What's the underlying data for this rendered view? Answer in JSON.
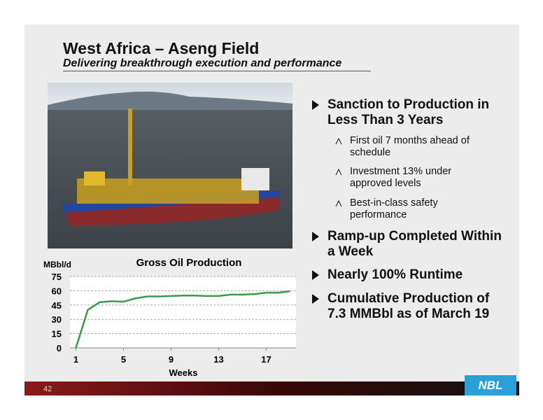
{
  "header": {
    "title": "West Africa – Aseng Field",
    "subtitle": "Delivering breakthrough execution and performance"
  },
  "bullets": [
    {
      "text": "Sanction to Production in Less Than 3 Years",
      "sub": [
        "First oil 7 months ahead of schedule",
        "Investment 13% under approved levels",
        "Best-in-class safety performance"
      ]
    },
    {
      "text": "Ramp-up Completed Within a Week"
    },
    {
      "text": "Nearly 100% Runtime"
    },
    {
      "text": "Cumulative Production of 7.3 MMBbl as of March 19"
    }
  ],
  "chart_data": {
    "type": "line",
    "title": "Gross Oil Production",
    "x_label": "Weeks",
    "y_label": "MBbl/d",
    "x": [
      1,
      2,
      3,
      4,
      5,
      6,
      7,
      8,
      9,
      10,
      11,
      12,
      13,
      14,
      15,
      16,
      17,
      18,
      19
    ],
    "values": [
      0,
      40,
      48,
      49,
      48.5,
      52,
      54,
      54,
      54.5,
      55,
      55,
      54.5,
      54.5,
      56,
      56,
      56.5,
      58,
      58,
      59.5
    ],
    "color": "#3a9a4a",
    "xlim": [
      0.5,
      19.5
    ],
    "xticks": [
      1,
      5,
      9,
      13,
      17
    ],
    "ylim": [
      0,
      75
    ],
    "yticks": [
      0,
      15,
      30,
      45,
      60,
      75
    ],
    "grid": true
  },
  "footer": {
    "page": "42",
    "logo": "NBL"
  }
}
